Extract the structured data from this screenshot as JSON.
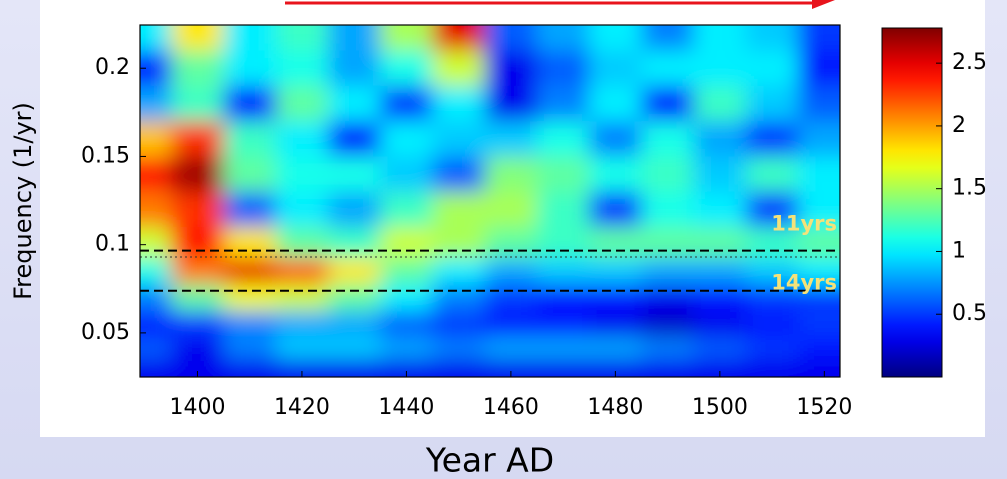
{
  "chart_data": {
    "type": "heatmap",
    "xlabel": "Year AD",
    "ylabel": "Frequency (1/yr)",
    "xlim": [
      1389,
      1523
    ],
    "xticks": [
      1400,
      1420,
      1440,
      1460,
      1480,
      1500,
      1520
    ],
    "ylim": [
      0.025,
      0.2245
    ],
    "yticks": [
      0.05,
      0.1,
      0.15,
      0.2
    ],
    "x": [
      1390,
      1400,
      1410,
      1420,
      1430,
      1440,
      1450,
      1460,
      1470,
      1480,
      1490,
      1500,
      1510,
      1520
    ],
    "y": [
      0.22,
      0.2,
      0.18,
      0.16,
      0.14,
      0.12,
      0.1,
      0.085,
      0.07,
      0.055,
      0.04,
      0.03
    ],
    "z": [
      [
        1.0,
        1.8,
        1.0,
        1.2,
        0.8,
        1.5,
        2.5,
        0.6,
        0.8,
        1.0,
        0.7,
        1.0,
        0.9,
        0.5
      ],
      [
        0.4,
        1.3,
        1.0,
        1.1,
        0.8,
        1.1,
        1.6,
        0.3,
        0.6,
        0.9,
        1.0,
        1.0,
        1.0,
        0.4
      ],
      [
        0.8,
        1.2,
        0.4,
        1.3,
        1.0,
        0.5,
        1.0,
        0.3,
        0.7,
        1.0,
        0.4,
        1.2,
        0.9,
        0.6
      ],
      [
        1.9,
        2.3,
        1.2,
        1.0,
        0.4,
        1.0,
        0.9,
        0.9,
        1.1,
        0.7,
        1.1,
        0.8,
        0.5,
        0.8
      ],
      [
        2.4,
        2.7,
        1.3,
        1.1,
        1.1,
        0.9,
        0.6,
        1.4,
        1.3,
        1.1,
        1.2,
        0.9,
        1.2,
        1.0
      ],
      [
        2.1,
        2.3,
        0.6,
        1.0,
        0.8,
        1.2,
        1.5,
        1.5,
        1.2,
        0.5,
        1.1,
        1.0,
        0.5,
        1.0
      ],
      [
        1.6,
        2.4,
        1.8,
        1.3,
        1.2,
        1.6,
        1.5,
        1.3,
        1.2,
        1.3,
        1.3,
        1.3,
        1.2,
        1.3
      ],
      [
        1.1,
        2.1,
        2.5,
        2.2,
        1.8,
        1.3,
        1.0,
        0.8,
        0.9,
        0.9,
        0.8,
        0.8,
        0.9,
        1.0
      ],
      [
        0.7,
        1.3,
        1.7,
        1.6,
        1.3,
        1.0,
        0.7,
        0.5,
        0.4,
        0.4,
        0.3,
        0.4,
        0.5,
        0.5
      ],
      [
        0.4,
        0.5,
        0.7,
        0.8,
        0.8,
        0.6,
        0.5,
        0.4,
        0.4,
        0.3,
        0.2,
        0.3,
        0.4,
        0.5
      ],
      [
        0.6,
        0.3,
        0.7,
        0.9,
        0.9,
        0.8,
        0.7,
        0.8,
        0.8,
        0.8,
        0.7,
        0.6,
        0.5,
        0.4
      ],
      [
        0.3,
        0.3,
        0.3,
        0.3,
        0.3,
        0.3,
        0.3,
        0.3,
        0.3,
        0.3,
        0.3,
        0.3,
        0.3,
        0.3
      ]
    ],
    "colorbar": {
      "lim": [
        0,
        2.78
      ],
      "ticks": [
        0.5,
        1,
        1.5,
        2,
        2.5
      ]
    },
    "hlines": [
      {
        "value": 0.0966,
        "label": "11yrs"
      },
      {
        "value": 0.0739,
        "label": "14yrs"
      }
    ],
    "dotted_hlines": [
      0.093
    ]
  }
}
